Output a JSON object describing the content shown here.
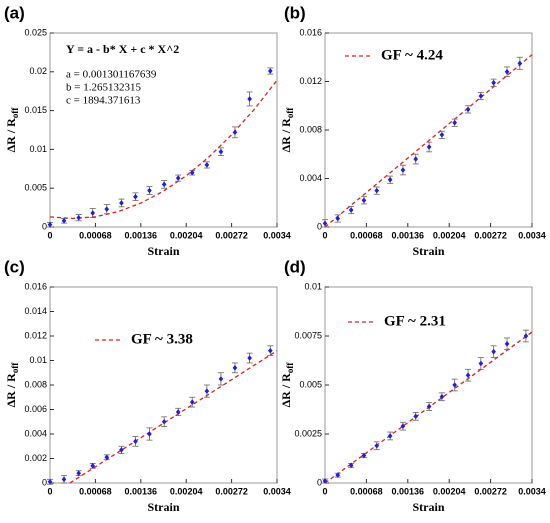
{
  "chart_data": [
    {
      "type": "scatter",
      "panel_label": "(a)",
      "xlabel": "Strain",
      "ylabel": "ΔR / R",
      "ylabel_subscript": "off",
      "annotations": [
        "Y = a - b* X + c * X^2",
        "a = 0.001301167639",
        "b = 1.265132315",
        "c = 1894.371613"
      ],
      "xlim": [
        0,
        0.0034
      ],
      "xticks": [
        0,
        0.00068,
        0.00136,
        0.00204,
        0.00272,
        0.0034
      ],
      "ylim": [
        0,
        0.025
      ],
      "yticks": [
        0,
        0.005,
        0.01,
        0.015,
        0.02,
        0.025
      ],
      "color": "#1f1fe0",
      "fit_color": "#e02020",
      "x": [
        0,
        0.00021,
        0.00043,
        0.00064,
        0.00085,
        0.00107,
        0.00128,
        0.00149,
        0.00171,
        0.00192,
        0.00213,
        0.00235,
        0.00256,
        0.00277,
        0.00299,
        0.0033
      ],
      "values": [
        0.0003,
        0.0008,
        0.0012,
        0.0018,
        0.0023,
        0.0031,
        0.0039,
        0.0047,
        0.0055,
        0.0063,
        0.007,
        0.008,
        0.0097,
        0.0122,
        0.0165,
        0.0201
      ],
      "errors": [
        0.0003,
        0.0003,
        0.0004,
        0.0006,
        0.0006,
        0.0005,
        0.0005,
        0.0005,
        0.0005,
        0.0004,
        0.0003,
        0.0004,
        0.0005,
        0.0007,
        0.0009,
        0.0004
      ],
      "fit": {
        "x": [
          0,
          0.00034,
          0.00068,
          0.00102,
          0.00136,
          0.0017,
          0.00204,
          0.00238,
          0.00272,
          0.00306,
          0.0034
        ],
        "values": [
          0.0013,
          0.00109,
          0.00132,
          0.00198,
          0.00308,
          0.00462,
          0.0066,
          0.00902,
          0.01188,
          0.01517,
          0.0189
        ]
      }
    },
    {
      "type": "scatter",
      "panel_label": "(b)",
      "xlabel": "Strain",
      "ylabel": "ΔR / R",
      "ylabel_subscript": "off",
      "legend": "GF ~ 4.24",
      "xlim": [
        0,
        0.0034
      ],
      "xticks": [
        0,
        0.00068,
        0.00136,
        0.00204,
        0.00272,
        0.0034
      ],
      "ylim": [
        0,
        0.016
      ],
      "yticks": [
        0,
        0.004,
        0.008,
        0.012,
        0.016
      ],
      "color": "#1f1fe0",
      "fit_color": "#e02020",
      "x": [
        0,
        0.00021,
        0.00043,
        0.00064,
        0.00085,
        0.00107,
        0.00128,
        0.00149,
        0.00171,
        0.00192,
        0.00213,
        0.00235,
        0.00256,
        0.00277,
        0.00299,
        0.0032
      ],
      "values": [
        0.0003,
        0.0007,
        0.0014,
        0.0022,
        0.003,
        0.0039,
        0.0047,
        0.0056,
        0.0066,
        0.0076,
        0.0086,
        0.0097,
        0.0108,
        0.0119,
        0.0128,
        0.0135
      ],
      "errors": [
        0.0003,
        0.0003,
        0.0003,
        0.0003,
        0.0003,
        0.0003,
        0.0004,
        0.0004,
        0.0004,
        0.0003,
        0.0003,
        0.0003,
        0.0003,
        0.0003,
        0.0004,
        0.0005
      ],
      "fit": {
        "x": [
          0,
          0.0034
        ],
        "values": [
          0,
          0.0142
        ]
      }
    },
    {
      "type": "scatter",
      "panel_label": "(c)",
      "xlabel": "Strain",
      "ylabel": "ΔR / R",
      "ylabel_subscript": "off",
      "legend": "GF ~ 3.38",
      "xlim": [
        0,
        0.0034
      ],
      "xticks": [
        0,
        0.00068,
        0.00136,
        0.00204,
        0.00272,
        0.0034
      ],
      "ylim": [
        0,
        0.016
      ],
      "yticks": [
        0,
        0.002,
        0.004,
        0.006,
        0.008,
        0.01,
        0.012,
        0.014,
        0.016
      ],
      "color": "#1f1fe0",
      "fit_color": "#e02020",
      "x": [
        0,
        0.00021,
        0.00043,
        0.00064,
        0.00085,
        0.00107,
        0.00128,
        0.00149,
        0.00171,
        0.00192,
        0.00213,
        0.00235,
        0.00256,
        0.00277,
        0.00299,
        0.0033
      ],
      "values": [
        0.0001,
        0.0003,
        0.0008,
        0.0014,
        0.0021,
        0.0027,
        0.0034,
        0.004,
        0.005,
        0.0058,
        0.0066,
        0.0075,
        0.0085,
        0.0094,
        0.0102,
        0.0108
      ],
      "errors": [
        0.0002,
        0.0003,
        0.0002,
        0.0002,
        0.0002,
        0.0003,
        0.0004,
        0.0005,
        0.0004,
        0.0003,
        0.0004,
        0.0005,
        0.0005,
        0.0004,
        0.0004,
        0.0004
      ],
      "fit": {
        "x": [
          0.0003,
          0.0034
        ],
        "values": [
          0,
          0.0108
        ]
      }
    },
    {
      "type": "scatter",
      "panel_label": "(d)",
      "xlabel": "Strain",
      "ylabel": "ΔR / R",
      "ylabel_subscript": "off",
      "legend": "GF ~ 2.31",
      "xlim": [
        0,
        0.0034
      ],
      "xticks": [
        0,
        0.00068,
        0.00136,
        0.00204,
        0.00272,
        0.0034
      ],
      "ylim": [
        0,
        0.01
      ],
      "yticks": [
        0,
        0.0025,
        0.005,
        0.0075,
        0.01
      ],
      "color": "#1f1fe0",
      "fit_color": "#e02020",
      "x": [
        0,
        0.00021,
        0.00043,
        0.00064,
        0.00085,
        0.00107,
        0.00128,
        0.00149,
        0.00171,
        0.00192,
        0.00213,
        0.00235,
        0.00256,
        0.00277,
        0.00299,
        0.0033
      ],
      "values": [
        0.0001,
        0.0004,
        0.0009,
        0.0014,
        0.0019,
        0.0024,
        0.0029,
        0.0034,
        0.0039,
        0.0044,
        0.005,
        0.0055,
        0.0061,
        0.0067,
        0.0071,
        0.0075
      ],
      "errors": [
        0.0001,
        0.0001,
        0.0001,
        0.0001,
        0.0002,
        0.0002,
        0.0002,
        0.0002,
        0.0002,
        0.0002,
        0.0003,
        0.0003,
        0.0003,
        0.0003,
        0.0003,
        0.0003
      ],
      "fit": {
        "x": [
          0,
          0.0034
        ],
        "values": [
          0,
          0.0077
        ]
      }
    }
  ]
}
